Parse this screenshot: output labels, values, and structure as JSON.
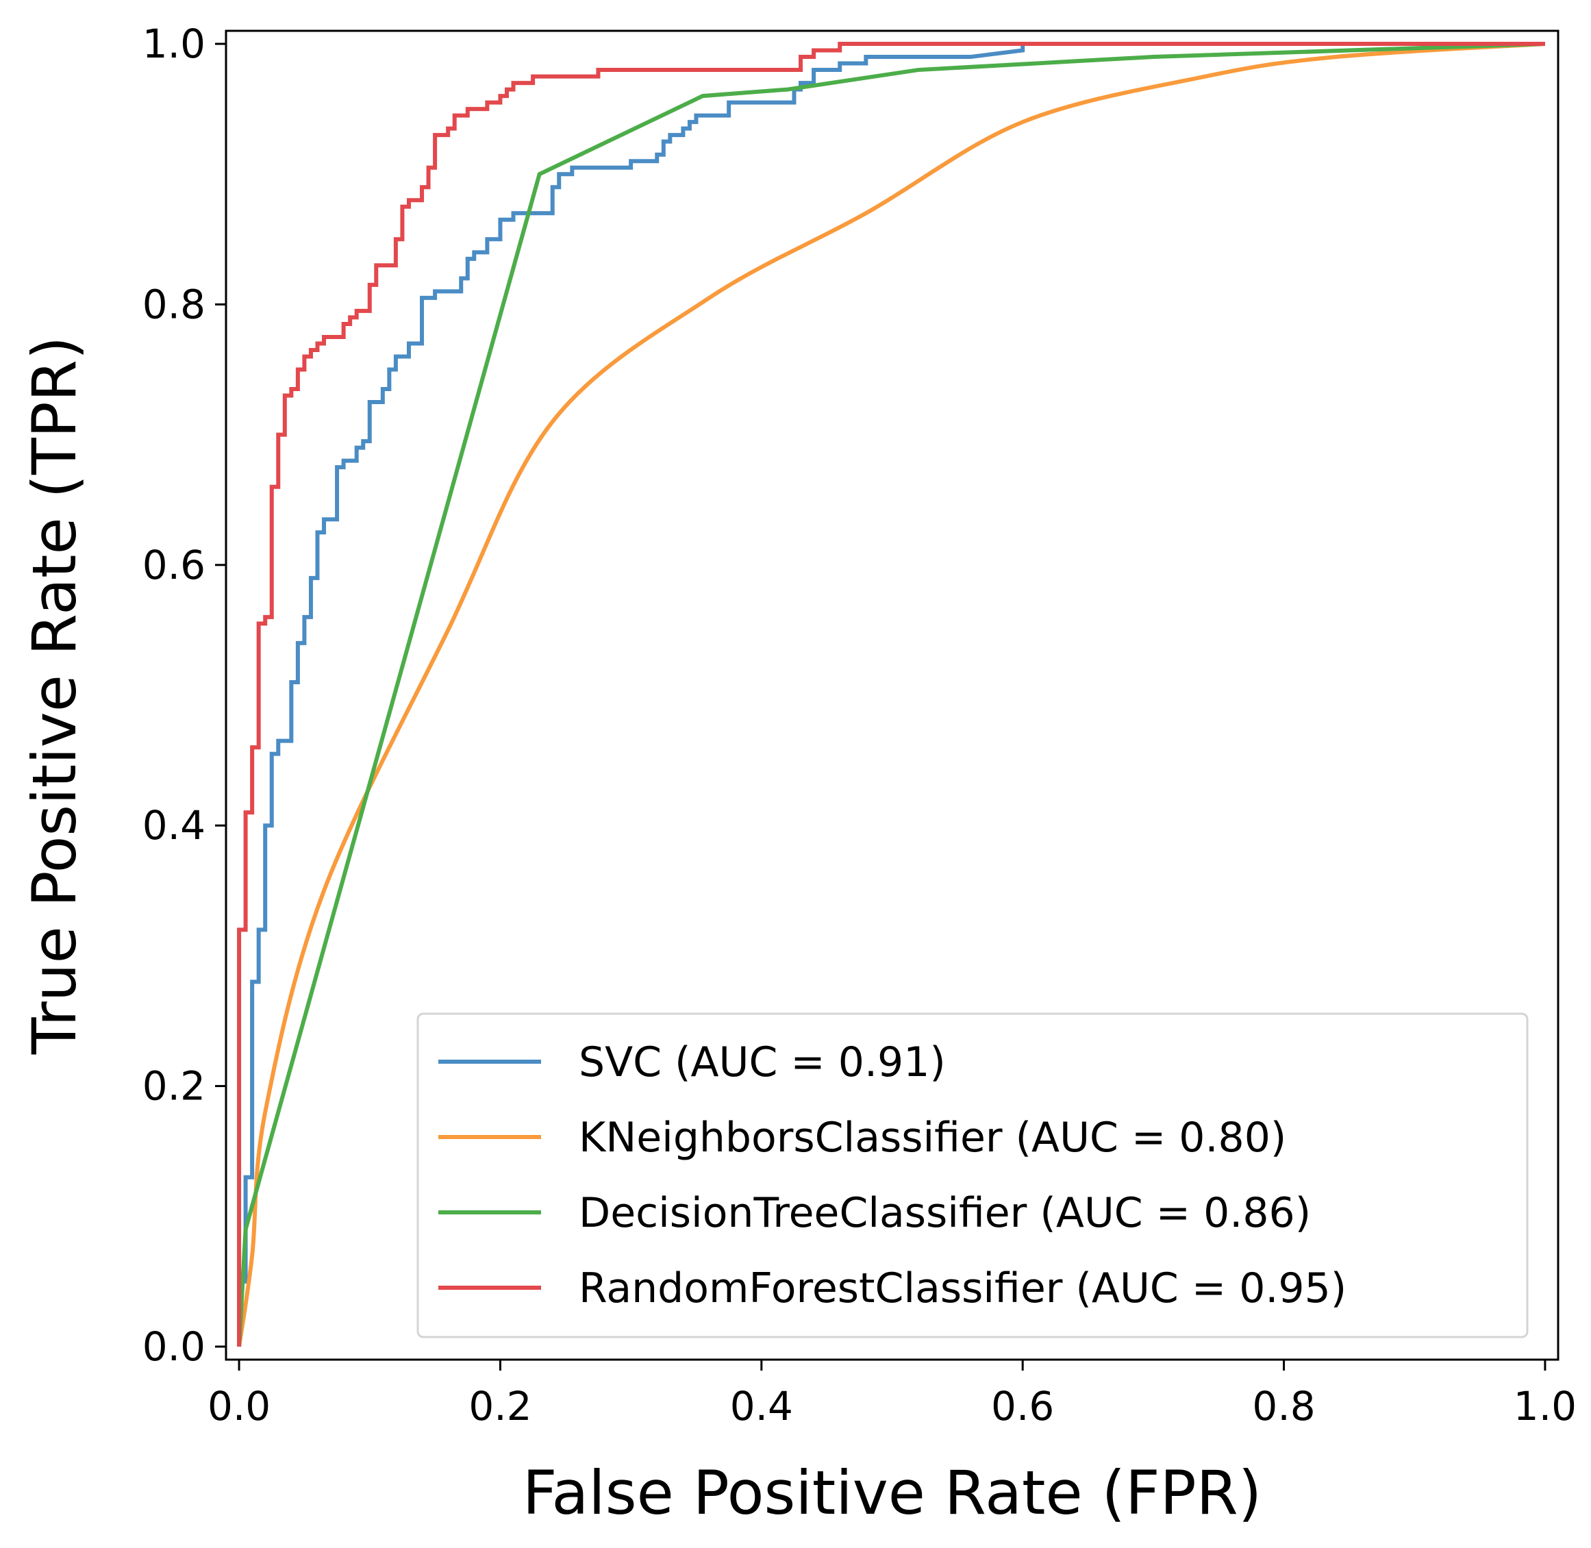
{
  "chart_data": {
    "type": "line",
    "title": "",
    "xlabel": "False Positive Rate (FPR)",
    "ylabel": "True Positive Rate (TPR)",
    "xlim": [
      -0.01,
      1.01
    ],
    "ylim": [
      -0.01,
      1.01
    ],
    "xticks": [
      0.0,
      0.2,
      0.4,
      0.6,
      0.8,
      1.0
    ],
    "xtick_labels": [
      "0.0",
      "0.2",
      "0.4",
      "0.6",
      "0.8",
      "1.0"
    ],
    "yticks": [
      0.0,
      0.2,
      0.4,
      0.6,
      0.8,
      1.0
    ],
    "ytick_labels": [
      "0.0",
      "0.2",
      "0.4",
      "0.6",
      "0.8",
      "1.0"
    ],
    "grid": false,
    "legend_position": "lower-right",
    "series": [
      {
        "name": "SVC",
        "label": "SVC (AUC = 0.91)",
        "color": "#4a8cc4",
        "x": [
          0.0,
          0.0,
          0.005,
          0.005,
          0.01,
          0.01,
          0.015,
          0.015,
          0.02,
          0.02,
          0.025,
          0.025,
          0.03,
          0.03,
          0.04,
          0.04,
          0.045,
          0.045,
          0.05,
          0.05,
          0.055,
          0.055,
          0.06,
          0.06,
          0.065,
          0.065,
          0.075,
          0.075,
          0.08,
          0.08,
          0.09,
          0.09,
          0.095,
          0.095,
          0.1,
          0.1,
          0.11,
          0.11,
          0.115,
          0.115,
          0.12,
          0.12,
          0.13,
          0.13,
          0.14,
          0.14,
          0.15,
          0.15,
          0.17,
          0.17,
          0.175,
          0.175,
          0.18,
          0.18,
          0.19,
          0.19,
          0.2,
          0.2,
          0.21,
          0.21,
          0.24,
          0.24,
          0.245,
          0.245,
          0.255,
          0.255,
          0.3,
          0.3,
          0.32,
          0.32,
          0.325,
          0.325,
          0.33,
          0.33,
          0.34,
          0.34,
          0.345,
          0.345,
          0.35,
          0.35,
          0.375,
          0.375,
          0.425,
          0.425,
          0.43,
          0.43,
          0.44,
          0.44,
          0.46,
          0.46,
          0.48,
          0.48,
          0.5,
          0.5,
          0.56,
          0.6,
          0.6,
          1.0
        ],
        "y": [
          0.0,
          0.05,
          0.05,
          0.13,
          0.13,
          0.28,
          0.28,
          0.32,
          0.32,
          0.4,
          0.4,
          0.455,
          0.455,
          0.465,
          0.465,
          0.51,
          0.51,
          0.54,
          0.54,
          0.56,
          0.56,
          0.59,
          0.59,
          0.625,
          0.625,
          0.635,
          0.635,
          0.675,
          0.675,
          0.68,
          0.68,
          0.69,
          0.69,
          0.695,
          0.695,
          0.725,
          0.725,
          0.735,
          0.735,
          0.75,
          0.75,
          0.76,
          0.76,
          0.77,
          0.77,
          0.805,
          0.805,
          0.81,
          0.81,
          0.82,
          0.82,
          0.835,
          0.835,
          0.84,
          0.84,
          0.85,
          0.85,
          0.865,
          0.865,
          0.87,
          0.87,
          0.89,
          0.89,
          0.9,
          0.9,
          0.905,
          0.905,
          0.91,
          0.91,
          0.915,
          0.915,
          0.925,
          0.925,
          0.93,
          0.93,
          0.935,
          0.935,
          0.94,
          0.94,
          0.945,
          0.945,
          0.955,
          0.955,
          0.965,
          0.965,
          0.97,
          0.97,
          0.98,
          0.98,
          0.985,
          0.985,
          0.99,
          0.99,
          0.99,
          0.99,
          0.995,
          1.0,
          1.0
        ]
      },
      {
        "name": "KNeighborsClassifier",
        "label": "KNeighborsClassifier (AUC = 0.80)",
        "color": "#f99a3c",
        "x": [
          0.0,
          0.01,
          0.02,
          0.065,
          0.16,
          0.24,
          0.36,
          0.48,
          0.6,
          0.74,
          0.84,
          1.0
        ],
        "y": [
          0.0,
          0.07,
          0.18,
          0.35,
          0.55,
          0.71,
          0.805,
          0.87,
          0.94,
          0.975,
          0.99,
          1.0
        ],
        "smooth": true
      },
      {
        "name": "DecisionTreeClassifier",
        "label": "DecisionTreeClassifier (AUC = 0.86)",
        "color": "#4cad49",
        "x": [
          0.0,
          0.005,
          0.23,
          0.355,
          0.42,
          0.52,
          0.7,
          1.0
        ],
        "y": [
          0.0,
          0.09,
          0.9,
          0.96,
          0.965,
          0.98,
          0.99,
          1.0
        ]
      },
      {
        "name": "RandomForestClassifier",
        "label": "RandomForestClassifier (AUC = 0.95)",
        "color": "#e2484c",
        "x": [
          0.0,
          0.0,
          0.005,
          0.005,
          0.01,
          0.01,
          0.015,
          0.015,
          0.02,
          0.02,
          0.025,
          0.025,
          0.03,
          0.03,
          0.035,
          0.035,
          0.04,
          0.04,
          0.045,
          0.045,
          0.05,
          0.05,
          0.055,
          0.055,
          0.06,
          0.06,
          0.065,
          0.065,
          0.08,
          0.08,
          0.085,
          0.085,
          0.09,
          0.09,
          0.1,
          0.1,
          0.105,
          0.105,
          0.12,
          0.12,
          0.125,
          0.125,
          0.13,
          0.13,
          0.14,
          0.14,
          0.145,
          0.145,
          0.15,
          0.15,
          0.16,
          0.16,
          0.165,
          0.165,
          0.175,
          0.175,
          0.19,
          0.19,
          0.2,
          0.2,
          0.205,
          0.205,
          0.21,
          0.21,
          0.225,
          0.225,
          0.275,
          0.275,
          0.32,
          0.32,
          0.43,
          0.43,
          0.44,
          0.44,
          0.45,
          0.45,
          0.46,
          0.46,
          1.0
        ],
        "y": [
          0.0,
          0.32,
          0.32,
          0.41,
          0.41,
          0.46,
          0.46,
          0.555,
          0.555,
          0.56,
          0.56,
          0.66,
          0.66,
          0.7,
          0.7,
          0.73,
          0.73,
          0.735,
          0.735,
          0.75,
          0.75,
          0.76,
          0.76,
          0.765,
          0.765,
          0.77,
          0.77,
          0.775,
          0.775,
          0.785,
          0.785,
          0.79,
          0.79,
          0.795,
          0.795,
          0.815,
          0.815,
          0.83,
          0.83,
          0.85,
          0.85,
          0.875,
          0.875,
          0.88,
          0.88,
          0.89,
          0.89,
          0.905,
          0.905,
          0.93,
          0.93,
          0.935,
          0.935,
          0.945,
          0.945,
          0.95,
          0.95,
          0.955,
          0.955,
          0.96,
          0.96,
          0.965,
          0.965,
          0.97,
          0.97,
          0.975,
          0.975,
          0.98,
          0.98,
          0.98,
          0.98,
          0.99,
          0.99,
          0.995,
          0.995,
          0.995,
          0.995,
          1.0,
          1.0
        ]
      }
    ]
  }
}
